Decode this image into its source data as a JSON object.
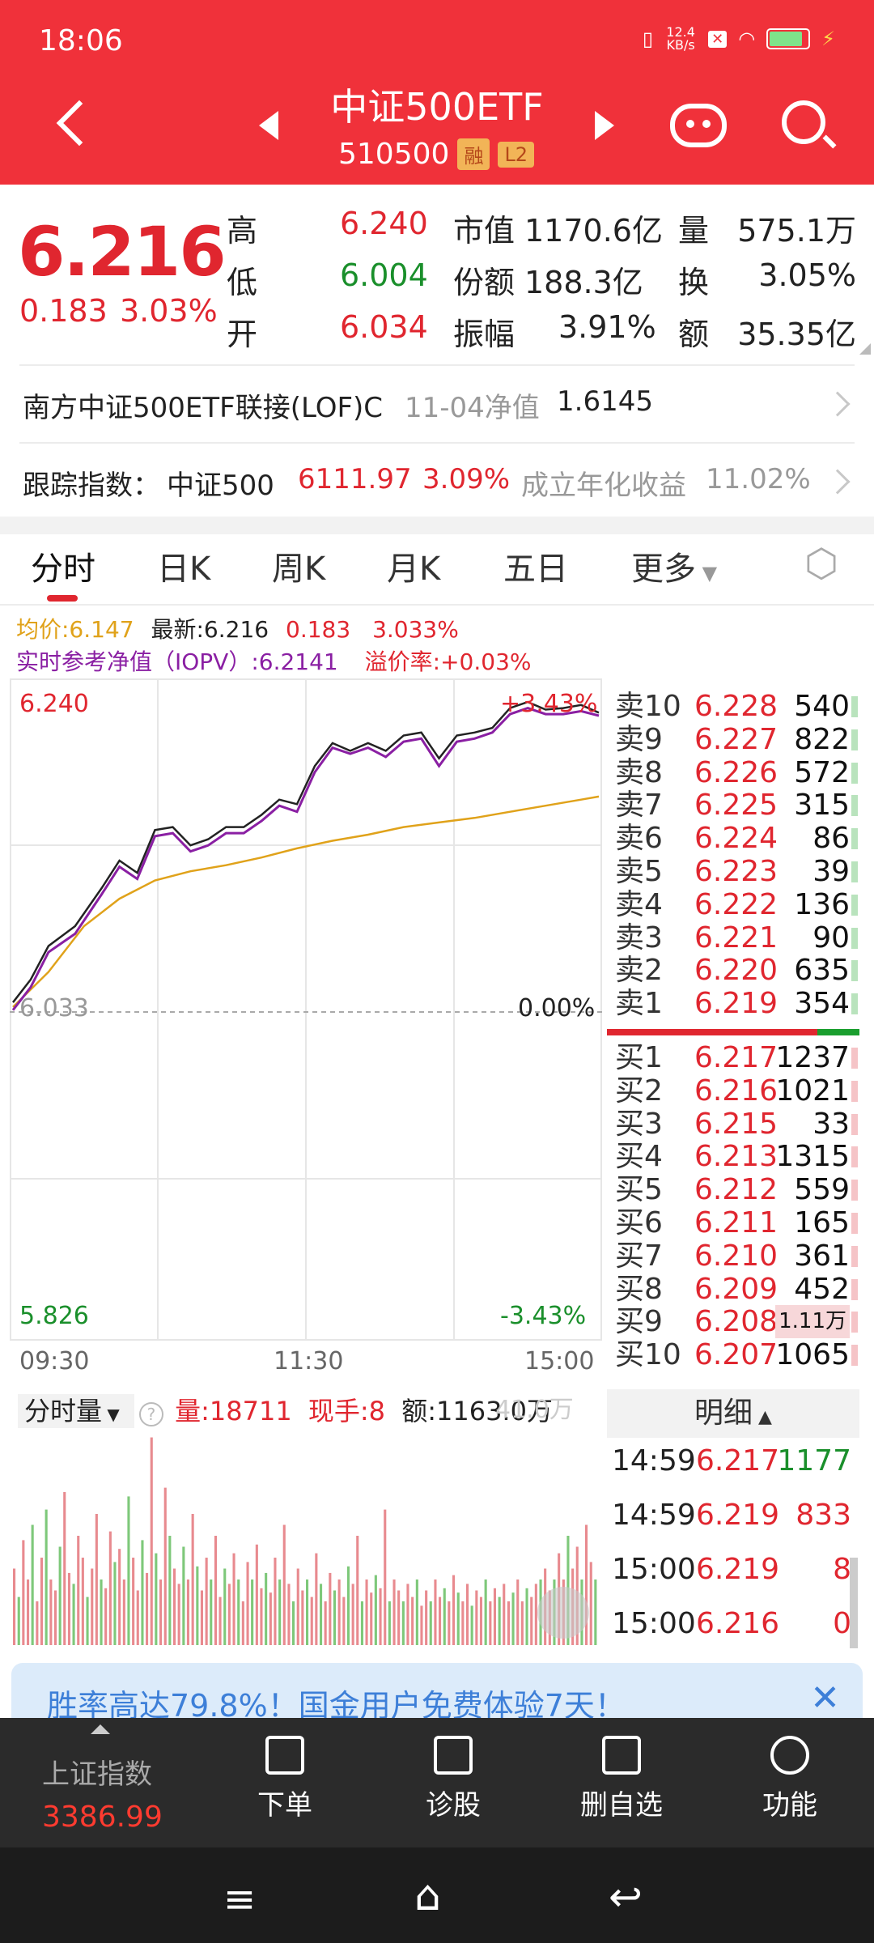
{
  "status_bar": {
    "time": "18:06",
    "net_speed": "12.4 KB/s"
  },
  "header": {
    "title": "中证500ETF",
    "code": "510500",
    "badge_margin": "融",
    "badge_level": "L2"
  },
  "quote": {
    "price": "6.216",
    "change": "0.183",
    "change_pct": "3.03%",
    "rows": [
      {
        "k1": "高",
        "v1": "6.240",
        "k2": "市值",
        "v2": "1170.6亿",
        "k3": "量",
        "v3": "575.1万"
      },
      {
        "k1": "低",
        "v1": "6.004",
        "k2": "份额",
        "v2": "188.3亿",
        "k3": "换",
        "v3": "3.05%"
      },
      {
        "k1": "开",
        "v1": "6.034",
        "k2": "振幅",
        "v2": "3.91%",
        "k3": "额",
        "v3": "35.35亿"
      }
    ]
  },
  "fund_link": {
    "name": "南方中证500ETF联接(LOF)C",
    "date_label": "11-04净值",
    "nav": "1.6145"
  },
  "tracking": {
    "label": "跟踪指数：",
    "index": "中证500",
    "value": "6111.97",
    "pct": "3.09%",
    "annual_label": "成立年化收益",
    "annual_value": "11.02%"
  },
  "tabs": [
    "分时",
    "日K",
    "周K",
    "月K",
    "五日",
    "更多"
  ],
  "legend": {
    "avg": "均价:6.147",
    "latest": "最新:6.216",
    "chg": "0.183",
    "chg_pct": "3.033%",
    "iopv": "实时参考净值（IOPV）:6.2141",
    "premium": "溢价率:+0.03%"
  },
  "chart_data": {
    "type": "line",
    "x_ticks": [
      "09:30",
      "11:30",
      "15:00"
    ],
    "y_top_label": "6.240",
    "y_bottom_label": "5.826",
    "pct_top_label": "+3.43%",
    "pct_bottom_label": "-3.43%",
    "prev_close_label": "6.033",
    "prev_close_pct": "0.00%",
    "ylim": [
      5.826,
      6.24
    ],
    "prev_close": 6.033,
    "price_series": [
      [
        0,
        6.035
      ],
      [
        4,
        6.05
      ],
      [
        8,
        6.072
      ],
      [
        14,
        6.085
      ],
      [
        20,
        6.11
      ],
      [
        24,
        6.128
      ],
      [
        28,
        6.12
      ],
      [
        32,
        6.148
      ],
      [
        36,
        6.15
      ],
      [
        40,
        6.138
      ],
      [
        44,
        6.142
      ],
      [
        48,
        6.15
      ],
      [
        52,
        6.15
      ],
      [
        56,
        6.158
      ],
      [
        60,
        6.168
      ],
      [
        64,
        6.165
      ],
      [
        68,
        6.19
      ],
      [
        72,
        6.205
      ],
      [
        76,
        6.2
      ],
      [
        80,
        6.205
      ],
      [
        84,
        6.2
      ],
      [
        88,
        6.21
      ],
      [
        92,
        6.212
      ],
      [
        96,
        6.195
      ],
      [
        100,
        6.21
      ],
      [
        104,
        6.212
      ],
      [
        108,
        6.215
      ],
      [
        112,
        6.228
      ],
      [
        116,
        6.232
      ],
      [
        120,
        6.227
      ],
      [
        124,
        6.228
      ],
      [
        128,
        6.23
      ],
      [
        132,
        6.225
      ]
    ],
    "iopv_series": [
      [
        0,
        6.03
      ],
      [
        4,
        6.045
      ],
      [
        8,
        6.068
      ],
      [
        14,
        6.08
      ],
      [
        20,
        6.106
      ],
      [
        24,
        6.124
      ],
      [
        28,
        6.116
      ],
      [
        32,
        6.144
      ],
      [
        36,
        6.146
      ],
      [
        40,
        6.134
      ],
      [
        44,
        6.138
      ],
      [
        48,
        6.146
      ],
      [
        52,
        6.146
      ],
      [
        56,
        6.154
      ],
      [
        60,
        6.164
      ],
      [
        64,
        6.16
      ],
      [
        68,
        6.186
      ],
      [
        72,
        6.202
      ],
      [
        76,
        6.198
      ],
      [
        80,
        6.202
      ],
      [
        84,
        6.196
      ],
      [
        88,
        6.206
      ],
      [
        92,
        6.208
      ],
      [
        96,
        6.19
      ],
      [
        100,
        6.206
      ],
      [
        104,
        6.208
      ],
      [
        108,
        6.212
      ],
      [
        112,
        6.224
      ],
      [
        116,
        6.228
      ],
      [
        120,
        6.224
      ],
      [
        124,
        6.224
      ],
      [
        128,
        6.226
      ],
      [
        132,
        6.223
      ]
    ],
    "avg_series": [
      [
        0,
        6.032
      ],
      [
        8,
        6.055
      ],
      [
        16,
        6.085
      ],
      [
        24,
        6.103
      ],
      [
        32,
        6.115
      ],
      [
        40,
        6.121
      ],
      [
        48,
        6.125
      ],
      [
        56,
        6.13
      ],
      [
        64,
        6.136
      ],
      [
        72,
        6.141
      ],
      [
        80,
        6.145
      ],
      [
        88,
        6.15
      ],
      [
        96,
        6.153
      ],
      [
        104,
        6.156
      ],
      [
        112,
        6.16
      ],
      [
        120,
        6.164
      ],
      [
        128,
        6.168
      ],
      [
        132,
        6.17
      ]
    ]
  },
  "volume": {
    "label": "分时量",
    "qty": "量:18711",
    "hand": "现手:8",
    "amount": "额:1163.0万",
    "max": "41.0万"
  },
  "volume_bars": [
    0.35,
    0.22,
    0.48,
    0.3,
    0.55,
    0.2,
    0.4,
    0.62,
    0.3,
    0.25,
    0.45,
    0.7,
    0.33,
    0.28,
    0.5,
    0.4,
    0.22,
    0.35,
    0.6,
    0.3,
    0.26,
    0.52,
    0.38,
    0.44,
    0.3,
    0.68,
    0.4,
    0.25,
    0.48,
    0.33,
    0.95,
    0.42,
    0.3,
    0.72,
    0.5,
    0.35,
    0.28,
    0.45,
    0.3,
    0.6,
    0.36,
    0.25,
    0.4,
    0.3,
    0.5,
    0.22,
    0.35,
    0.28,
    0.42,
    0.3,
    0.2,
    0.38,
    0.3,
    0.46,
    0.26,
    0.33,
    0.24,
    0.4,
    0.3,
    0.55,
    0.28,
    0.2,
    0.35,
    0.25,
    0.3,
    0.22,
    0.42,
    0.28,
    0.2,
    0.33,
    0.25,
    0.3,
    0.22,
    0.36,
    0.28,
    0.5,
    0.2,
    0.3,
    0.24,
    0.32,
    0.26,
    0.62,
    0.2,
    0.3,
    0.25,
    0.2,
    0.28,
    0.22,
    0.3,
    0.18,
    0.25,
    0.2,
    0.3,
    0.22,
    0.26,
    0.2,
    0.32,
    0.24,
    0.2,
    0.28,
    0.18,
    0.25,
    0.22,
    0.3,
    0.2,
    0.26,
    0.22,
    0.28,
    0.2,
    0.24,
    0.3,
    0.2,
    0.26,
    0.22,
    0.28,
    0.3,
    0.35,
    0.25,
    0.3,
    0.42,
    0.3,
    0.5,
    0.35,
    0.45,
    0.3,
    0.55,
    0.38,
    0.3
  ],
  "order_book": {
    "asks": [
      {
        "label": "卖10",
        "price": "6.228",
        "vol": "540"
      },
      {
        "label": "卖9",
        "price": "6.227",
        "vol": "822"
      },
      {
        "label": "卖8",
        "price": "6.226",
        "vol": "572"
      },
      {
        "label": "卖7",
        "price": "6.225",
        "vol": "315"
      },
      {
        "label": "卖6",
        "price": "6.224",
        "vol": "86"
      },
      {
        "label": "卖5",
        "price": "6.223",
        "vol": "39"
      },
      {
        "label": "卖4",
        "price": "6.222",
        "vol": "136"
      },
      {
        "label": "卖3",
        "price": "6.221",
        "vol": "90"
      },
      {
        "label": "卖2",
        "price": "6.220",
        "vol": "635"
      },
      {
        "label": "卖1",
        "price": "6.219",
        "vol": "354"
      }
    ],
    "bids": [
      {
        "label": "买1",
        "price": "6.217",
        "vol": "1237"
      },
      {
        "label": "买2",
        "price": "6.216",
        "vol": "1021"
      },
      {
        "label": "买3",
        "price": "6.215",
        "vol": "33"
      },
      {
        "label": "买4",
        "price": "6.213",
        "vol": "1315"
      },
      {
        "label": "买5",
        "price": "6.212",
        "vol": "559"
      },
      {
        "label": "买6",
        "price": "6.211",
        "vol": "165"
      },
      {
        "label": "买7",
        "price": "6.210",
        "vol": "361"
      },
      {
        "label": "买8",
        "price": "6.209",
        "vol": "452"
      },
      {
        "label": "买9",
        "price": "6.208",
        "vol": "1.11万"
      },
      {
        "label": "买10",
        "price": "6.207",
        "vol": "1065"
      }
    ]
  },
  "detail": {
    "title": "明细",
    "rows": [
      {
        "time": "14:59",
        "price": "6.217",
        "vol": "1177",
        "side": "buy"
      },
      {
        "time": "14:59",
        "price": "6.219",
        "vol": "833",
        "side": "sell"
      },
      {
        "time": "15:00",
        "price": "6.219",
        "vol": "8",
        "side": "sell"
      },
      {
        "time": "15:00",
        "price": "6.216",
        "vol": "0",
        "side": "sell"
      }
    ]
  },
  "banner": {
    "text": "胜率高达79.8%！国金用户免费体验7天！"
  },
  "bottom_nav": {
    "index_name": "上证指数",
    "index_value": "3386.99",
    "items": [
      "下单",
      "诊股",
      "删自选",
      "功能"
    ]
  },
  "colors": {
    "brand_red": "#f0313a",
    "price_line": "#222222",
    "iopv_line": "#8a1fa3",
    "avg_line": "#e0a21a",
    "down_green": "#1a8f2b"
  }
}
